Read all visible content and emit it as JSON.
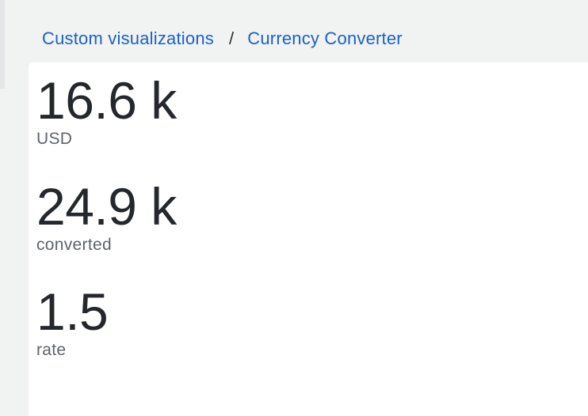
{
  "breadcrumb": {
    "parent": "Custom visualizations",
    "separator": "/",
    "current": "Currency Converter"
  },
  "metrics": [
    {
      "value": "16.6 k",
      "label": "USD"
    },
    {
      "value": "24.9 k",
      "label": "converted"
    },
    {
      "value": "1.5",
      "label": "rate"
    }
  ],
  "colors": {
    "link": "#1a62c4",
    "value_text": "#24272c",
    "label_text": "#5f6368",
    "page_background": "#f1f2f2",
    "panel_background": "#ffffff"
  }
}
